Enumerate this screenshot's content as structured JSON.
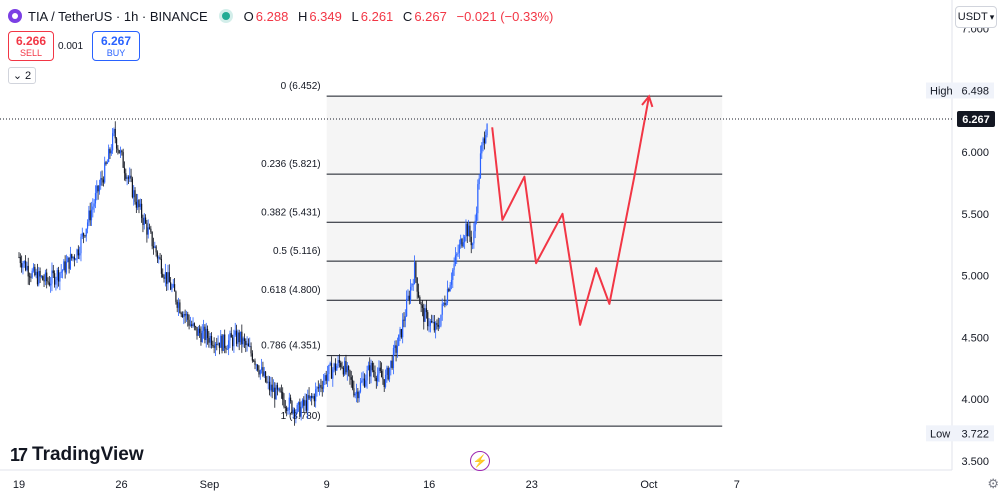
{
  "header": {
    "symbol": "TIA / TetherUS · 1h · BINANCE",
    "open_label": "O",
    "open": "6.288",
    "high_label": "H",
    "high": "6.349",
    "low_label": "L",
    "low": "6.261",
    "close_label": "C",
    "close": "6.267",
    "change": "−0.021 (−0.33%)"
  },
  "trade": {
    "sell_price": "6.266",
    "sell_label": "SELL",
    "spread": "0.001",
    "buy_price": "6.267",
    "buy_label": "BUY"
  },
  "indicators_collapse": "2",
  "currency_button": "USDT",
  "branding": "TradingView",
  "colors": {
    "candle_up": "#2962ff",
    "candle_down": "#131722",
    "forecast_path": "#f23645",
    "fib_line": "#131722",
    "fib_fill": "#f5f5f5"
  },
  "chart_data": {
    "type": "candlestick",
    "title": "TIA / TetherUS · 1h · BINANCE",
    "ylim": [
      3.5,
      7.0
    ],
    "y_ticks": [
      "3.500",
      "4.000",
      "4.500",
      "5.000",
      "5.500",
      "6.000",
      "6.500",
      "7.000"
    ],
    "x_ticks": [
      {
        "label": "19",
        "day": 0
      },
      {
        "label": "26",
        "day": 7
      },
      {
        "label": "Sep",
        "day": 13
      },
      {
        "label": "9",
        "day": 21
      },
      {
        "label": "16",
        "day": 28
      },
      {
        "label": "23",
        "day": 35
      },
      {
        "label": "Oct",
        "day": 43
      },
      {
        "label": "7",
        "day": 49
      }
    ],
    "price_path": [
      {
        "day": 0.0,
        "price": 5.15
      },
      {
        "day": 1.0,
        "price": 5.0
      },
      {
        "day": 2.0,
        "price": 4.95
      },
      {
        "day": 3.0,
        "price": 5.05
      },
      {
        "day": 4.0,
        "price": 5.2
      },
      {
        "day": 5.0,
        "price": 5.55
      },
      {
        "day": 6.0,
        "price": 5.9
      },
      {
        "day": 6.5,
        "price": 6.15
      },
      {
        "day": 7.0,
        "price": 5.95
      },
      {
        "day": 8.0,
        "price": 5.6
      },
      {
        "day": 9.0,
        "price": 5.3
      },
      {
        "day": 10.0,
        "price": 5.0
      },
      {
        "day": 11.0,
        "price": 4.75
      },
      {
        "day": 12.0,
        "price": 4.55
      },
      {
        "day": 13.0,
        "price": 4.5
      },
      {
        "day": 14.0,
        "price": 4.45
      },
      {
        "day": 15.0,
        "price": 4.5
      },
      {
        "day": 16.0,
        "price": 4.35
      },
      {
        "day": 17.0,
        "price": 4.1
      },
      {
        "day": 18.0,
        "price": 4.0
      },
      {
        "day": 19.0,
        "price": 3.9
      },
      {
        "day": 20.0,
        "price": 4.0
      },
      {
        "day": 21.0,
        "price": 4.2
      },
      {
        "day": 22.0,
        "price": 4.3
      },
      {
        "day": 23.0,
        "price": 4.05
      },
      {
        "day": 24.0,
        "price": 4.25
      },
      {
        "day": 25.0,
        "price": 4.15
      },
      {
        "day": 26.0,
        "price": 4.5
      },
      {
        "day": 27.0,
        "price": 5.05
      },
      {
        "day": 27.5,
        "price": 4.7
      },
      {
        "day": 28.5,
        "price": 4.55
      },
      {
        "day": 29.5,
        "price": 5.0
      },
      {
        "day": 30.5,
        "price": 5.4
      },
      {
        "day": 31.0,
        "price": 5.25
      },
      {
        "day": 31.5,
        "price": 5.95
      },
      {
        "day": 32.0,
        "price": 6.3
      }
    ],
    "fibonacci": {
      "start_day": 21.0,
      "end_day": 48.0,
      "levels": [
        {
          "label": "0 (6.452)",
          "price": 6.452
        },
        {
          "label": "0.236 (5.821)",
          "price": 5.821
        },
        {
          "label": "0.382 (5.431)",
          "price": 5.431
        },
        {
          "label": "0.5 (5.116)",
          "price": 5.116
        },
        {
          "label": "0.618 (4.800)",
          "price": 4.8
        },
        {
          "label": "0.786 (4.351)",
          "price": 4.351
        },
        {
          "label": "1 (3.780)",
          "price": 3.78
        }
      ]
    },
    "forecast_path": [
      {
        "day": 32.3,
        "price": 6.2
      },
      {
        "day": 33.0,
        "price": 5.45
      },
      {
        "day": 34.5,
        "price": 5.8
      },
      {
        "day": 35.3,
        "price": 5.1
      },
      {
        "day": 37.1,
        "price": 5.5
      },
      {
        "day": 38.3,
        "price": 4.6
      },
      {
        "day": 39.4,
        "price": 5.06
      },
      {
        "day": 40.3,
        "price": 4.77
      },
      {
        "day": 42.0,
        "price": 5.8
      },
      {
        "day": 43.0,
        "price": 6.45
      }
    ],
    "last_price": "6.267",
    "high": {
      "label": "High",
      "value": "6.498"
    },
    "low": {
      "label": "Low",
      "value": "3.722"
    }
  }
}
